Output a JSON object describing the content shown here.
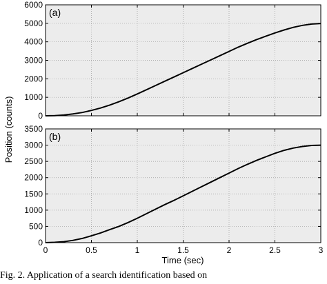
{
  "ylabel": "Position (counts)",
  "xlabel": "Time (sec)",
  "caption": "Fig. 2.   Application of a search identification based on",
  "chart_data": [
    {
      "type": "line",
      "panel_label": "(a)",
      "xlabel": "Time (sec)",
      "ylabel": "Position (counts)",
      "xlim": [
        0,
        3
      ],
      "ylim": [
        0,
        6000
      ],
      "xticks": [
        0,
        0.5,
        1,
        1.5,
        2,
        2.5,
        3
      ],
      "yticks": [
        0,
        1000,
        2000,
        3000,
        4000,
        5000,
        6000
      ],
      "grid": true,
      "series": [
        {
          "x": [
            0,
            0.1,
            0.2,
            0.3,
            0.4,
            0.5,
            0.6,
            0.7,
            0.8,
            0.9,
            1.0,
            1.1,
            1.2,
            1.3,
            1.4,
            1.5,
            1.6,
            1.7,
            1.8,
            1.9,
            2.0,
            2.1,
            2.2,
            2.3,
            2.4,
            2.5,
            2.6,
            2.7,
            2.8,
            2.9,
            3.0
          ],
          "y": [
            0,
            10,
            40,
            100,
            180,
            290,
            420,
            580,
            760,
            960,
            1180,
            1410,
            1640,
            1870,
            2100,
            2330,
            2560,
            2790,
            3020,
            3250,
            3480,
            3710,
            3920,
            4120,
            4300,
            4480,
            4640,
            4780,
            4890,
            4960,
            4990
          ]
        }
      ]
    },
    {
      "type": "line",
      "panel_label": "(b)",
      "xlabel": "Time (sec)",
      "ylabel": "Position (counts)",
      "xlim": [
        0,
        3
      ],
      "ylim": [
        0,
        3500
      ],
      "xticks": [
        0,
        0.5,
        1,
        1.5,
        2,
        2.5,
        3
      ],
      "yticks": [
        0,
        500,
        1000,
        1500,
        2000,
        2500,
        3000,
        3500
      ],
      "grid": true,
      "series": [
        {
          "x": [
            0,
            0.1,
            0.2,
            0.3,
            0.4,
            0.5,
            0.6,
            0.7,
            0.8,
            0.9,
            1.0,
            1.1,
            1.2,
            1.3,
            1.4,
            1.5,
            1.6,
            1.7,
            1.8,
            1.9,
            2.0,
            2.1,
            2.2,
            2.3,
            2.4,
            2.5,
            2.6,
            2.7,
            2.8,
            2.9,
            3.0
          ],
          "y": [
            0,
            10,
            30,
            70,
            130,
            210,
            300,
            400,
            500,
            620,
            750,
            890,
            1030,
            1170,
            1300,
            1440,
            1580,
            1720,
            1860,
            2000,
            2140,
            2280,
            2410,
            2530,
            2640,
            2750,
            2840,
            2910,
            2960,
            2990,
            3000
          ]
        }
      ]
    }
  ]
}
